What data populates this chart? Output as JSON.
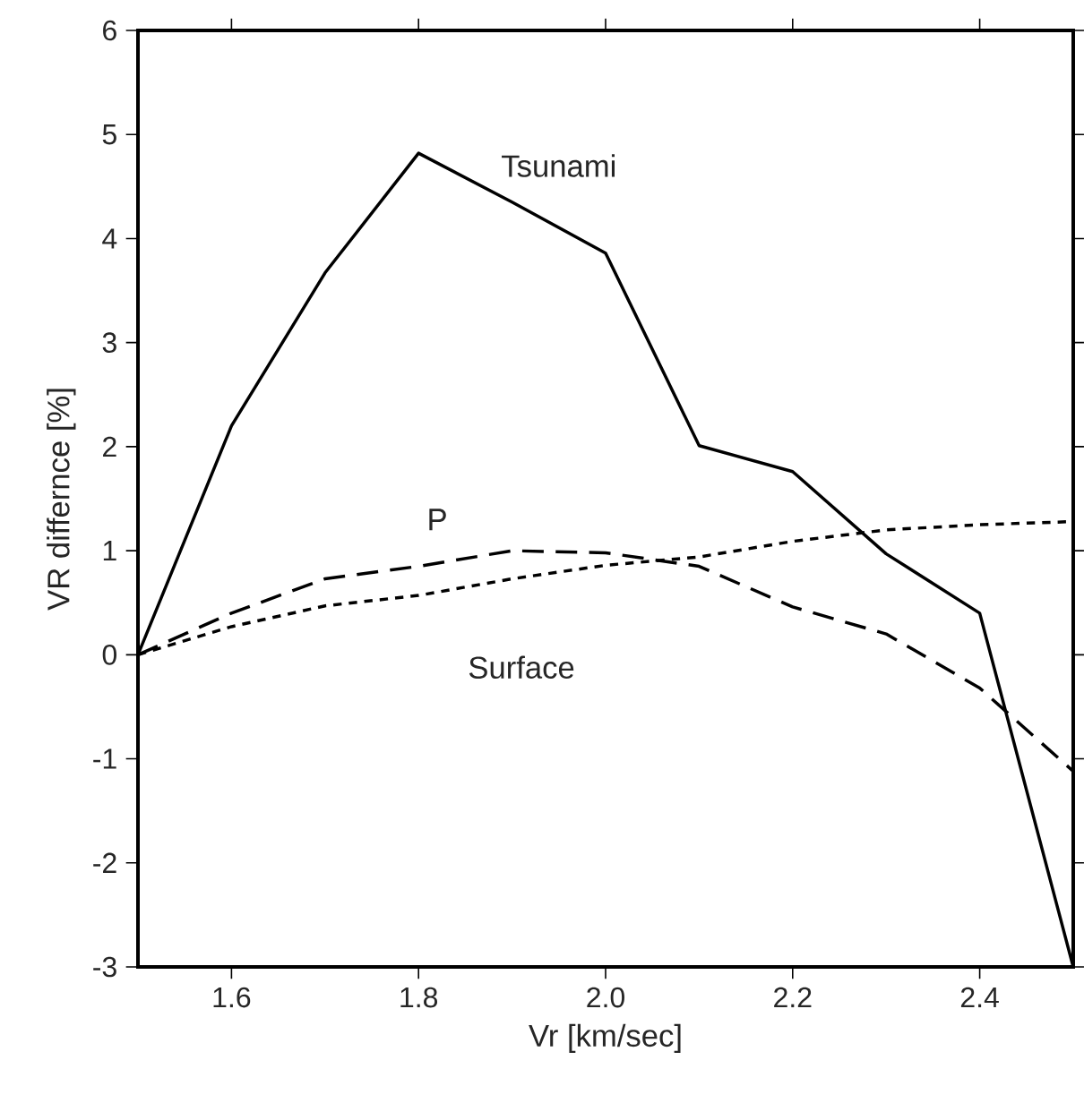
{
  "chart_data": {
    "type": "line",
    "xlabel": "Vr [km/sec]",
    "ylabel": "VR differnce [%]",
    "x": [
      1.5,
      1.6,
      1.7,
      1.8,
      1.9,
      2.0,
      2.1,
      2.2,
      2.3,
      2.4,
      2.5
    ],
    "series": [
      {
        "name": "Tsunami",
        "color": "#000000",
        "line_style": "solid",
        "values": [
          0,
          2.2,
          3.67,
          4.82,
          4.35,
          3.86,
          2.01,
          1.76,
          0.97,
          0.4,
          -3.0
        ]
      },
      {
        "name": "P",
        "color": "#000000",
        "line_style": "dashed",
        "values": [
          0,
          0.4,
          0.73,
          0.85,
          1.0,
          0.98,
          0.85,
          0.46,
          0.2,
          -0.32,
          -1.12
        ]
      },
      {
        "name": "Surface",
        "color": "#000000",
        "line_style": "dotted",
        "values": [
          0,
          0.27,
          0.47,
          0.57,
          0.73,
          0.86,
          0.94,
          1.09,
          1.2,
          1.25,
          1.28
        ]
      }
    ],
    "xlim": [
      1.5,
      2.5
    ],
    "ylim": [
      -3,
      6
    ],
    "xticks": [
      {
        "value": 1.6,
        "label": "1.6"
      },
      {
        "value": 1.8,
        "label": "1.8"
      },
      {
        "value": 2.0,
        "label": "2.0"
      },
      {
        "value": 2.2,
        "label": "2.2"
      },
      {
        "value": 2.4,
        "label": "2.4"
      }
    ],
    "yticks": [
      -3,
      -2,
      -1,
      0,
      1,
      2,
      3,
      4,
      5,
      6
    ],
    "grid": false,
    "legend": false,
    "marker": "none"
  }
}
